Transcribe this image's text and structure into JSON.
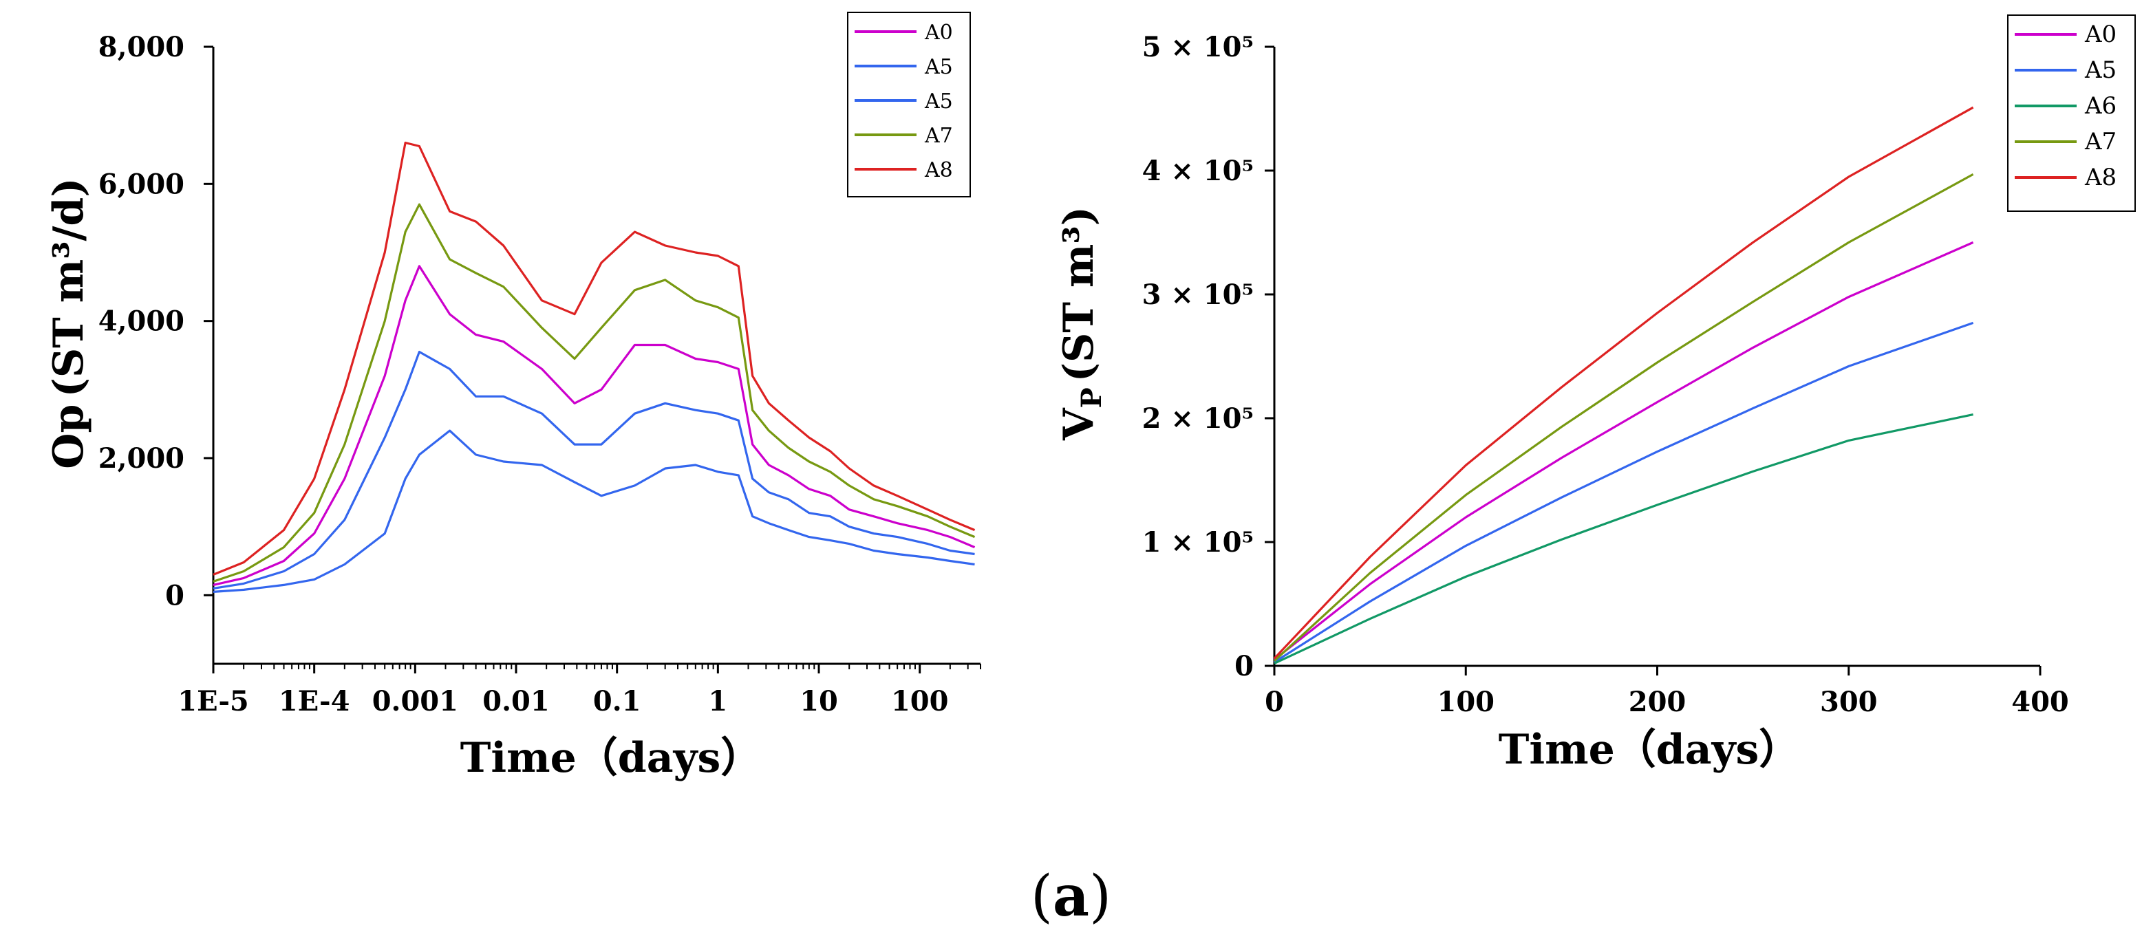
{
  "colors": {
    "A0": "#cc00cc",
    "A5": "#3366ee",
    "A6": "#119966",
    "A7": "#779911",
    "A8": "#dd2222"
  },
  "caption": {
    "open": "(",
    "letter": "a",
    "close": ")"
  },
  "chart_data": [
    {
      "type": "line",
      "xscale": "log",
      "xlabel": "Time（days）",
      "ylabel_main": "Op",
      "ylabel_sub": "",
      "ylabel_unit": "(ST m³/d)",
      "xlim": [
        1e-05,
        400
      ],
      "ylim": [
        -1000,
        8000
      ],
      "x_ticks": [
        {
          "v": 1e-05,
          "label": "1E-5"
        },
        {
          "v": 0.0001,
          "label": "1E-4"
        },
        {
          "v": 0.001,
          "label": "0.001"
        },
        {
          "v": 0.01,
          "label": "0.01"
        },
        {
          "v": 0.1,
          "label": "0.1"
        },
        {
          "v": 1,
          "label": "1"
        },
        {
          "v": 10,
          "label": "10"
        },
        {
          "v": 100,
          "label": "100"
        }
      ],
      "y_ticks": [
        {
          "v": 0,
          "label": "0"
        },
        {
          "v": 2000,
          "label": "2,000"
        },
        {
          "v": 4000,
          "label": "4,000"
        },
        {
          "v": 6000,
          "label": "6,000"
        },
        {
          "v": 8000,
          "label": "8,000"
        }
      ],
      "legend_position": "top-right",
      "legend": [
        "A0",
        "A5",
        "A5",
        "A7",
        "A8"
      ],
      "x": [
        1e-05,
        2e-05,
        5e-05,
        0.0001,
        0.0002,
        0.0005,
        0.0008,
        0.0011,
        0.0022,
        0.004,
        0.0075,
        0.018,
        0.038,
        0.07,
        0.15,
        0.3,
        0.6,
        1.0,
        1.6,
        2.2,
        3.2,
        5,
        8,
        13,
        20,
        35,
        60,
        120,
        200,
        350
      ],
      "series": [
        {
          "name": "A0",
          "values": [
            150,
            250,
            500,
            900,
            1700,
            3200,
            4300,
            4800,
            4100,
            3800,
            3700,
            3300,
            2800,
            3000,
            3650,
            3650,
            3450,
            3400,
            3300,
            2200,
            1900,
            1750,
            1550,
            1450,
            1250,
            1150,
            1050,
            950,
            850,
            700
          ]
        },
        {
          "name": "A5",
          "values": [
            100,
            170,
            350,
            600,
            1100,
            2300,
            3000,
            3550,
            3300,
            2900,
            2900,
            2650,
            2200,
            2200,
            2650,
            2800,
            2700,
            2650,
            2550,
            1700,
            1500,
            1400,
            1200,
            1150,
            1000,
            900,
            850,
            750,
            650,
            600
          ]
        },
        {
          "name": "A5",
          "values": [
            50,
            80,
            150,
            230,
            450,
            900,
            1700,
            2050,
            2400,
            2050,
            1950,
            1900,
            1650,
            1450,
            1600,
            1850,
            1900,
            1800,
            1750,
            1150,
            1050,
            950,
            850,
            800,
            750,
            650,
            600,
            550,
            500,
            450
          ]
        },
        {
          "name": "A7",
          "values": [
            200,
            350,
            700,
            1200,
            2200,
            4000,
            5300,
            5700,
            4900,
            4700,
            4500,
            3900,
            3450,
            3900,
            4450,
            4600,
            4300,
            4200,
            4050,
            2700,
            2400,
            2150,
            1950,
            1800,
            1600,
            1400,
            1300,
            1150,
            1000,
            850
          ]
        },
        {
          "name": "A8",
          "values": [
            300,
            480,
            950,
            1700,
            3000,
            5000,
            6600,
            6550,
            5600,
            5450,
            5100,
            4300,
            4100,
            4850,
            5300,
            5100,
            5000,
            4950,
            4800,
            3200,
            2800,
            2550,
            2300,
            2100,
            1850,
            1600,
            1450,
            1250,
            1100,
            950
          ]
        }
      ]
    },
    {
      "type": "line",
      "xscale": "linear",
      "xlabel": "Time（days）",
      "ylabel_main": "V",
      "ylabel_sub": "P",
      "ylabel_unit": "(ST m³)",
      "xlim": [
        0,
        400
      ],
      "ylim": [
        0,
        500000
      ],
      "x_ticks": [
        {
          "v": 0,
          "label": "0"
        },
        {
          "v": 100,
          "label": "100"
        },
        {
          "v": 200,
          "label": "200"
        },
        {
          "v": 300,
          "label": "300"
        },
        {
          "v": 400,
          "label": "400"
        }
      ],
      "y_ticks": [
        {
          "v": 0,
          "label": "0"
        },
        {
          "v": 100000,
          "label": "1 × 10⁵"
        },
        {
          "v": 200000,
          "label": "2 × 10⁵"
        },
        {
          "v": 300000,
          "label": "3 × 10⁵"
        },
        {
          "v": 400000,
          "label": "4 × 10⁵"
        },
        {
          "v": 500000,
          "label": "5 × 10⁵"
        }
      ],
      "legend_position": "top-right",
      "legend": [
        "A0",
        "A5",
        "A6",
        "A7",
        "A8"
      ],
      "x": [
        0,
        50,
        100,
        150,
        200,
        250,
        300,
        365
      ],
      "series": [
        {
          "name": "A0",
          "values": [
            5000,
            66000,
            120000,
            168000,
            213000,
            257000,
            298000,
            342000
          ]
        },
        {
          "name": "A5",
          "values": [
            3000,
            52000,
            97000,
            136000,
            173000,
            208000,
            242000,
            277000
          ]
        },
        {
          "name": "A6",
          "values": [
            2000,
            38000,
            72000,
            102000,
            130000,
            157000,
            182000,
            203000
          ]
        },
        {
          "name": "A7",
          "values": [
            4000,
            75000,
            138000,
            193000,
            245000,
            294000,
            342000,
            397000
          ]
        },
        {
          "name": "A8",
          "values": [
            6000,
            88000,
            162000,
            225000,
            285000,
            342000,
            395000,
            451000
          ]
        }
      ]
    }
  ]
}
